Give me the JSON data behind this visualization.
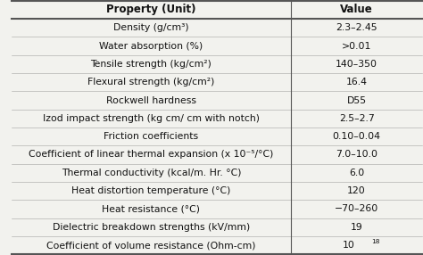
{
  "headers": [
    "Property (Unit)",
    "Value"
  ],
  "rows": [
    [
      "Density (g/cm³)",
      "2.3–2.45"
    ],
    [
      "Water absorption (%)",
      ">0.01"
    ],
    [
      "Tensile strength (kg/cm²)",
      "140–350"
    ],
    [
      "Flexural strength (kg/cm²)",
      "16.4"
    ],
    [
      "Rockwell hardness",
      "D55"
    ],
    [
      "Izod impact strength (kg cm/ cm with notch)",
      "2.5–2.7"
    ],
    [
      "Friction coefficients",
      "0.10–0.04"
    ],
    [
      "Coefficient of linear thermal expansion (x 10⁻⁵/°C)",
      "7.0–10.0"
    ],
    [
      "Thermal conductivity (kcal/m. Hr. °C)",
      "6.0"
    ],
    [
      "Heat distortion temperature (°C)",
      "120"
    ],
    [
      "Heat resistance (°C)",
      "−70–260"
    ],
    [
      "Dielectric breakdown strengths (kV/mm)",
      "19"
    ],
    [
      "Coefficient of volume resistance (Ohm-cm)",
      "10^18"
    ]
  ],
  "bg_color": "#f2f2ee",
  "border_color": "#555555",
  "text_color": "#111111",
  "font_size": 7.8,
  "header_font_size": 8.5,
  "col_split": 0.68
}
